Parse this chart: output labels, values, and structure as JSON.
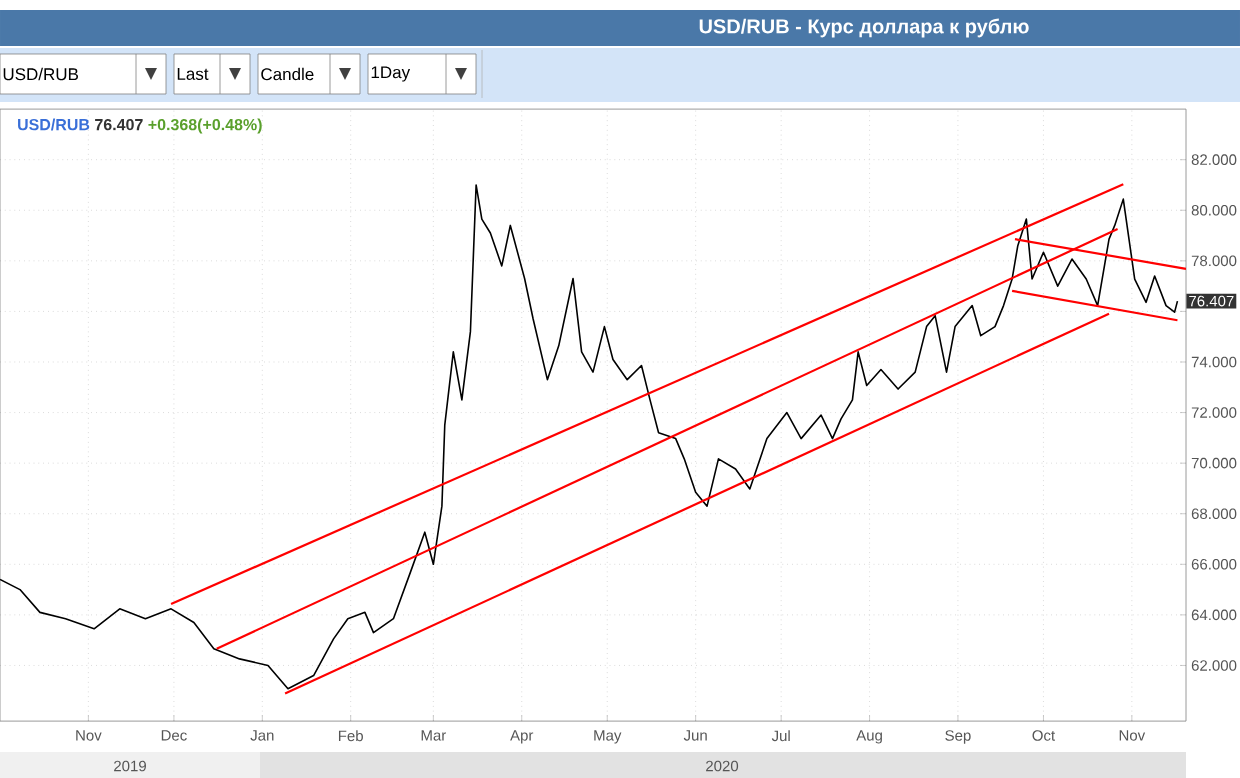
{
  "chart_data": {
    "type": "line",
    "title": "USD/RUB - Курс доллара к рублю",
    "xlim": [
      "2019-10-01",
      "2020-11-20"
    ],
    "ylim": [
      59.8,
      84
    ],
    "xticks": [
      {
        "value": "2019-11-01",
        "label": "Nov"
      },
      {
        "value": "2019-12-01",
        "label": "Dec"
      },
      {
        "value": "2020-01-01",
        "label": "Jan"
      },
      {
        "value": "2020-02-01",
        "label": "Feb"
      },
      {
        "value": "2020-03-01",
        "label": "Mar"
      },
      {
        "value": "2020-04-01",
        "label": "Apr"
      },
      {
        "value": "2020-05-01",
        "label": "May"
      },
      {
        "value": "2020-06-01",
        "label": "Jun"
      },
      {
        "value": "2020-07-01",
        "label": "Jul"
      },
      {
        "value": "2020-08-01",
        "label": "Aug"
      },
      {
        "value": "2020-09-01",
        "label": "Sep"
      },
      {
        "value": "2020-10-01",
        "label": "Oct"
      },
      {
        "value": "2020-11-01",
        "label": "Nov"
      }
    ],
    "yticks": [
      {
        "value": 62,
        "label": "62.000"
      },
      {
        "value": 64,
        "label": "64.000"
      },
      {
        "value": 66,
        "label": "66.000"
      },
      {
        "value": 68,
        "label": "68.000"
      },
      {
        "value": 70,
        "label": "70.000"
      },
      {
        "value": 72,
        "label": "72.000"
      },
      {
        "value": 74,
        "label": "74.000"
      },
      {
        "value": 76,
        "label": null
      },
      {
        "value": 78,
        "label": "78.000"
      },
      {
        "value": 80,
        "label": "80.000"
      },
      {
        "value": 82,
        "label": "82.000"
      }
    ],
    "grid": true,
    "marker": "none",
    "line_style": "solid",
    "series": [
      {
        "color": "#000000",
        "x": [
          "2019-10-01",
          "2019-10-08",
          "2019-10-15",
          "2019-10-24",
          "2019-11-03",
          "2019-11-12",
          "2019-11-21",
          "2019-11-30",
          "2019-12-08",
          "2019-12-15",
          "2019-12-24",
          "2020-01-03",
          "2020-01-10",
          "2020-01-19",
          "2020-01-26",
          "2020-01-31",
          "2020-02-06",
          "2020-02-09",
          "2020-02-16",
          "2020-02-22",
          "2020-02-27",
          "2020-03-01",
          "2020-03-04",
          "2020-03-05",
          "2020-03-08",
          "2020-03-11",
          "2020-03-14",
          "2020-03-16",
          "2020-03-18",
          "2020-03-21",
          "2020-03-25",
          "2020-03-28",
          "2020-04-02",
          "2020-04-05",
          "2020-04-10",
          "2020-04-14",
          "2020-04-19",
          "2020-04-22",
          "2020-04-26",
          "2020-04-30",
          "2020-05-03",
          "2020-05-08",
          "2020-05-13",
          "2020-05-16",
          "2020-05-19",
          "2020-05-25",
          "2020-05-28",
          "2020-06-01",
          "2020-06-05",
          "2020-06-09",
          "2020-06-15",
          "2020-06-20",
          "2020-06-26",
          "2020-07-03",
          "2020-07-08",
          "2020-07-15",
          "2020-07-19",
          "2020-07-22",
          "2020-07-26",
          "2020-07-28",
          "2020-07-31",
          "2020-08-05",
          "2020-08-11",
          "2020-08-17",
          "2020-08-21",
          "2020-08-24",
          "2020-08-28",
          "2020-08-31",
          "2020-09-06",
          "2020-09-09",
          "2020-09-14",
          "2020-09-17",
          "2020-09-20",
          "2020-09-22",
          "2020-09-25",
          "2020-09-27",
          "2020-10-01",
          "2020-10-06",
          "2020-10-11",
          "2020-10-16",
          "2020-10-20",
          "2020-10-24",
          "2020-10-26",
          "2020-10-29",
          "2020-10-31",
          "2020-11-02",
          "2020-11-06",
          "2020-11-09",
          "2020-11-13",
          "2020-11-16",
          "2020-11-17"
        ],
        "values": [
          65.4,
          65.0,
          64.1,
          63.85,
          63.45,
          64.24,
          63.85,
          64.24,
          63.7,
          62.66,
          62.26,
          62.0,
          61.08,
          61.6,
          63.05,
          63.85,
          64.1,
          63.3,
          63.85,
          65.7,
          67.27,
          66.0,
          68.3,
          71.5,
          74.4,
          72.5,
          75.2,
          81.0,
          79.65,
          79.1,
          77.8,
          79.4,
          77.3,
          75.7,
          73.3,
          74.65,
          77.3,
          74.4,
          73.6,
          75.4,
          74.1,
          73.3,
          73.86,
          72.5,
          71.2,
          70.97,
          70.17,
          68.85,
          68.3,
          70.17,
          69.77,
          68.98,
          70.97,
          72.0,
          70.97,
          71.9,
          70.97,
          71.75,
          72.5,
          74.4,
          73.07,
          73.7,
          72.93,
          73.6,
          75.4,
          75.83,
          73.6,
          75.4,
          76.23,
          75.04,
          75.4,
          76.23,
          77.28,
          78.6,
          79.65,
          77.28,
          78.34,
          77.0,
          78.07,
          77.28,
          76.23,
          78.86,
          79.4,
          80.44,
          78.86,
          77.28,
          76.36,
          77.4,
          76.23,
          75.97,
          76.407
        ]
      },
      {
        "color": "#ff0000",
        "x": [
          "2019-11-30",
          "2020-10-29"
        ],
        "values": [
          64.43,
          81.03
        ]
      },
      {
        "color": "#ff0000",
        "x": [
          "2019-12-16",
          "2020-10-27"
        ],
        "values": [
          62.66,
          79.26
        ]
      },
      {
        "color": "#ff0000",
        "x": [
          "2020-01-09",
          "2020-10-24"
        ],
        "values": [
          60.89,
          75.91
        ]
      },
      {
        "color": "#ff0000",
        "x": [
          "2020-09-21",
          "2020-11-20"
        ],
        "values": [
          78.86,
          77.68
        ]
      },
      {
        "color": "#ff0000",
        "x": [
          "2020-09-20",
          "2020-11-17"
        ],
        "values": [
          76.81,
          75.65
        ]
      }
    ],
    "annotations": [
      "USD/RUB",
      "Last",
      "Candle",
      "1Day",
      "USD/RUB",
      "76.407",
      "+0.368(+0.48%)",
      "2019",
      "2020",
      {
        "text": "76.407",
        "x": "2020-11-20",
        "y": 76.407
      }
    ]
  }
}
